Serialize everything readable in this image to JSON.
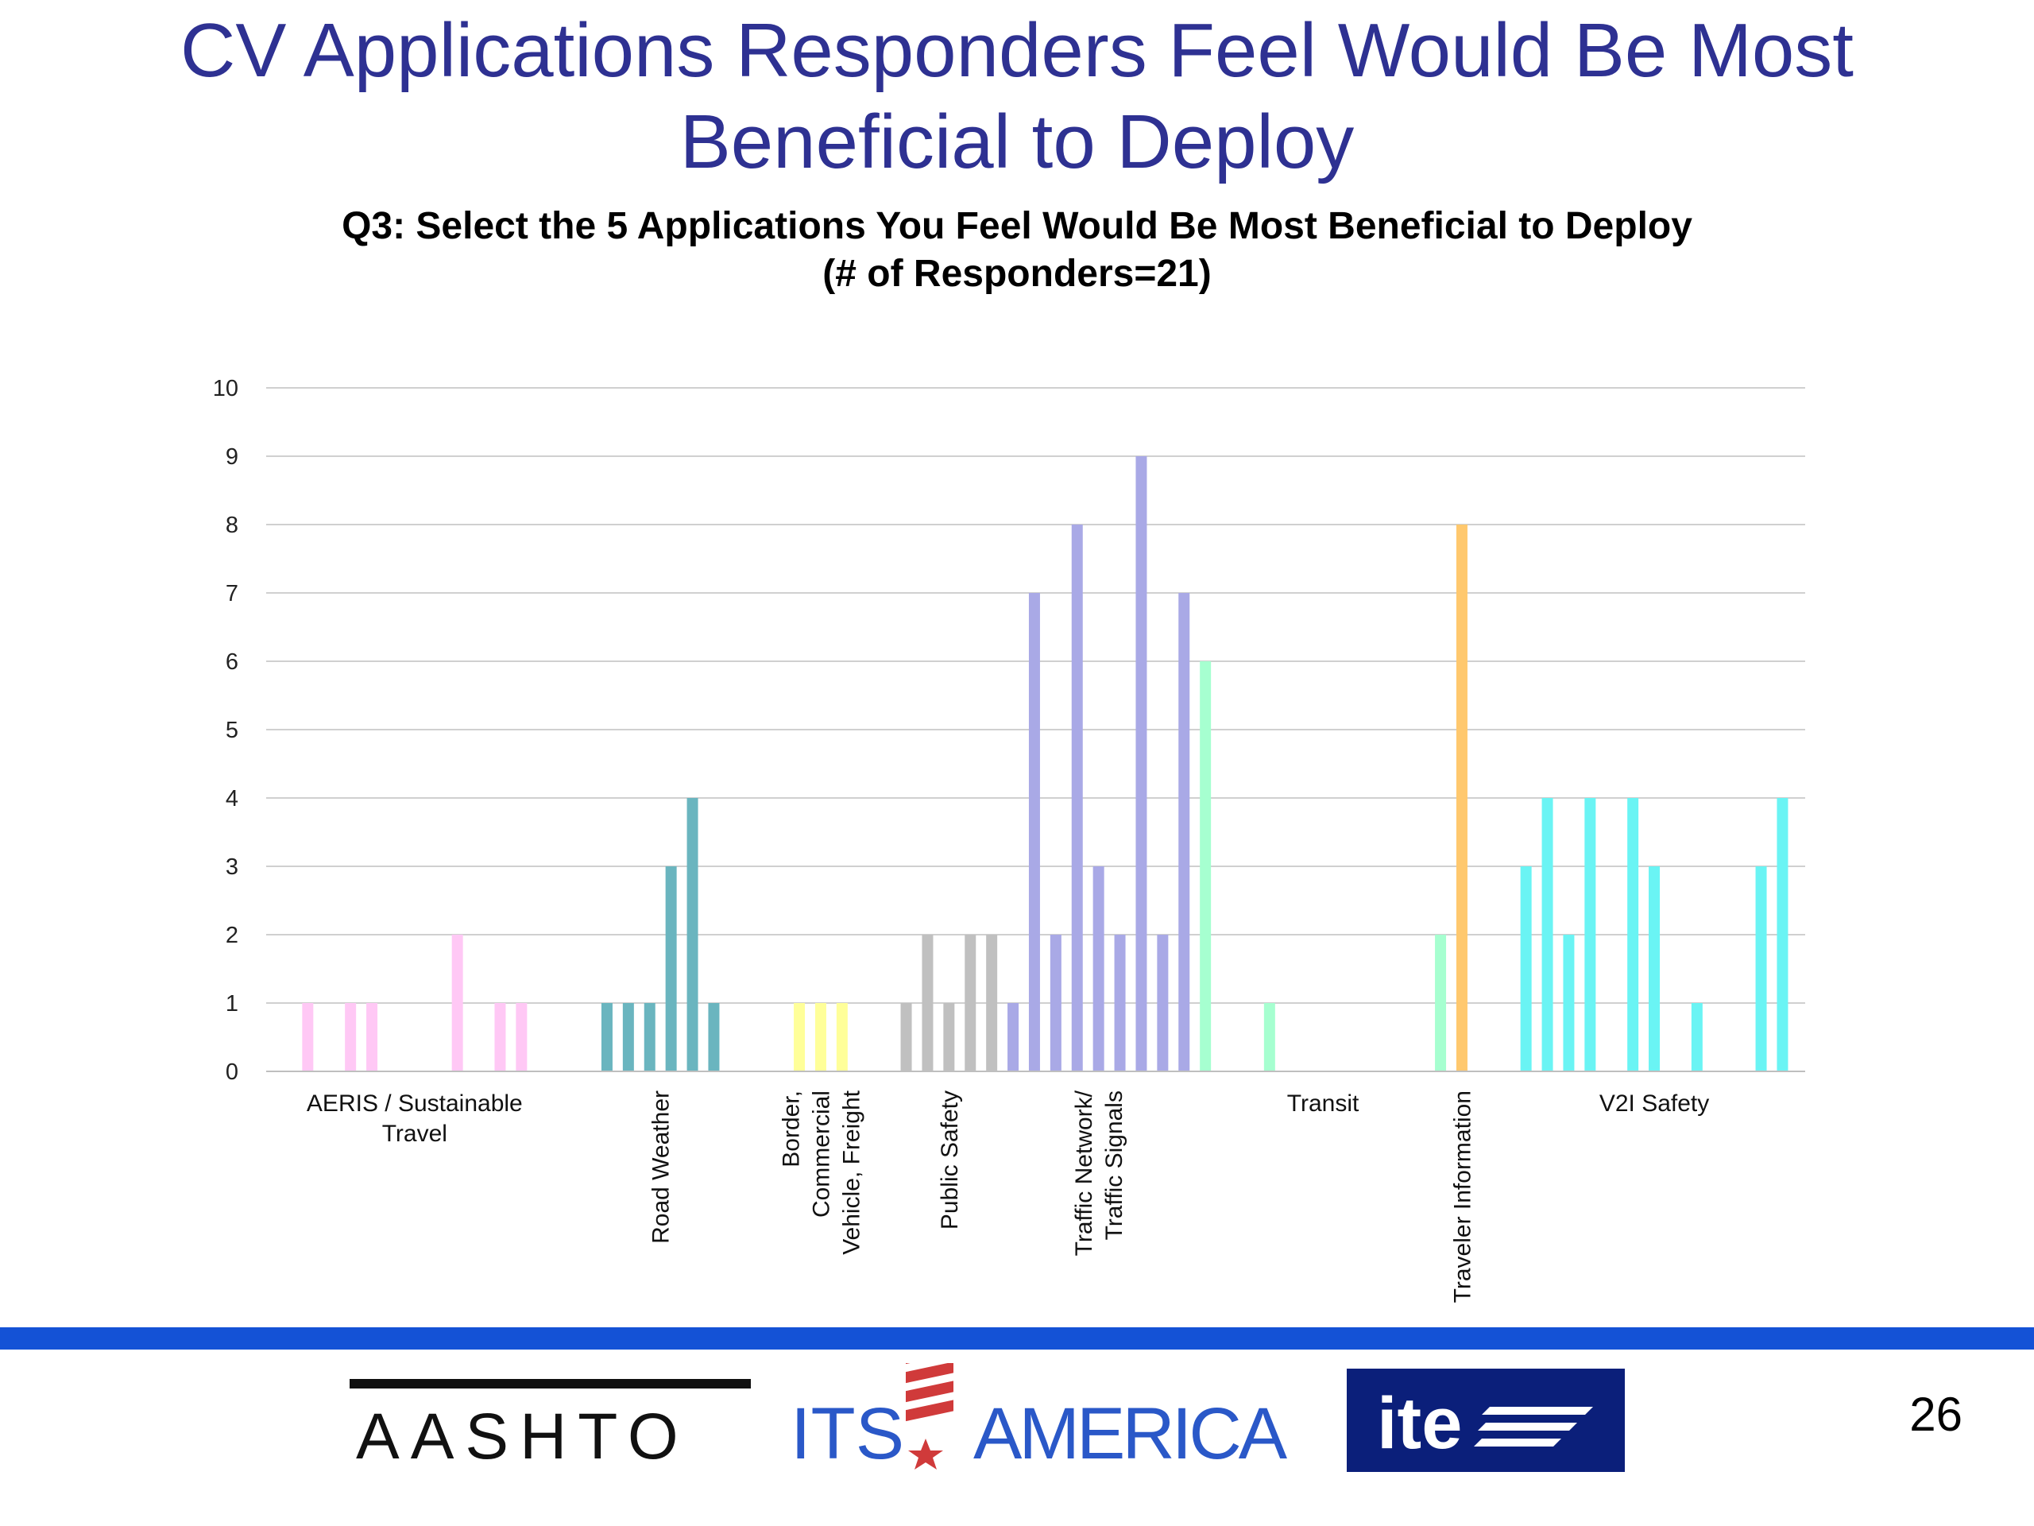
{
  "slide": {
    "title_line1": "CV Applications Responders Feel Would Be Most",
    "title_line2": "Beneficial to Deploy",
    "page_number": "26"
  },
  "logos": {
    "aashto": "AASHTO",
    "its_left": "ITS",
    "its_right": "AMERICA",
    "ite": "ite"
  },
  "colors": {
    "title": "#2e3192",
    "footer_band": "#1452d6",
    "gridline": "#d0d0d0"
  },
  "chart_data": {
    "type": "bar",
    "title": "Q3: Select the 5 Applications You Feel Would Be Most Beneficial to Deploy",
    "subtitle": "(# of Responders=21)",
    "xlabel": "",
    "ylabel": "",
    "ylim": [
      0,
      10
    ],
    "yticks": [
      0,
      1,
      2,
      3,
      4,
      5,
      6,
      7,
      8,
      9,
      10
    ],
    "grid": true,
    "slot_count": 70,
    "groups": [
      {
        "label": "AERIS / Sustainable Travel",
        "label_lines": [
          "AERIS / Sustainable",
          "Travel"
        ],
        "label_orientation": "horizontal",
        "color": "#ffc8f5",
        "bars": [
          {
            "slot": 2,
            "value": 1
          },
          {
            "slot": 4,
            "value": 1
          },
          {
            "slot": 5,
            "value": 1
          },
          {
            "slot": 9,
            "value": 2
          },
          {
            "slot": 11,
            "value": 1
          },
          {
            "slot": 12,
            "value": 1
          }
        ]
      },
      {
        "label": "Road Weather",
        "label_lines": [
          "Road Weather"
        ],
        "label_orientation": "vertical",
        "color": "#6ab5bf",
        "bars": [
          {
            "slot": 16,
            "value": 1
          },
          {
            "slot": 17,
            "value": 1
          },
          {
            "slot": 18,
            "value": 1
          },
          {
            "slot": 19,
            "value": 3
          },
          {
            "slot": 20,
            "value": 4
          },
          {
            "slot": 21,
            "value": 1
          }
        ]
      },
      {
        "label": "Border, Commercial Vehicle, Freight",
        "label_lines": [
          "Border,",
          "Commercial",
          "Vehicle, Freight"
        ],
        "label_orientation": "vertical",
        "color": "#ffff99",
        "bars": [
          {
            "slot": 25,
            "value": 1
          },
          {
            "slot": 26,
            "value": 1
          },
          {
            "slot": 27,
            "value": 1
          }
        ]
      },
      {
        "label": "Public Safety",
        "label_lines": [
          "Public Safety"
        ],
        "label_orientation": "vertical",
        "color": "#c0c0c0",
        "bars": [
          {
            "slot": 30,
            "value": 1
          },
          {
            "slot": 31,
            "value": 2
          },
          {
            "slot": 32,
            "value": 1
          },
          {
            "slot": 33,
            "value": 2
          },
          {
            "slot": 34,
            "value": 2
          }
        ]
      },
      {
        "label": "Traffic Network/ Traffic Signals",
        "label_lines": [
          "Traffic Network/",
          "Traffic Signals"
        ],
        "label_orientation": "vertical",
        "color": "#a9a9e6",
        "bars": [
          {
            "slot": 35,
            "value": 1
          },
          {
            "slot": 36,
            "value": 7
          },
          {
            "slot": 37,
            "value": 2
          },
          {
            "slot": 38,
            "value": 8
          },
          {
            "slot": 39,
            "value": 3
          },
          {
            "slot": 40,
            "value": 2
          },
          {
            "slot": 41,
            "value": 9
          },
          {
            "slot": 42,
            "value": 2
          },
          {
            "slot": 43,
            "value": 7
          }
        ]
      },
      {
        "label": "Transit",
        "label_lines": [
          "Transit"
        ],
        "label_orientation": "horizontal",
        "color": "#a6ffd0",
        "bars": [
          {
            "slot": 44,
            "value": 6
          },
          {
            "slot": 47,
            "value": 1
          },
          {
            "slot": 55,
            "value": 2
          }
        ]
      },
      {
        "label": "Traveler Information",
        "label_lines": [
          "Traveler Information"
        ],
        "label_orientation": "vertical",
        "color": "#ffc86e",
        "bars": [
          {
            "slot": 56,
            "value": 8
          }
        ]
      },
      {
        "label": "V2I Safety",
        "label_lines": [
          "V2I Safety"
        ],
        "label_orientation": "horizontal",
        "color": "#6af4f4",
        "bars": [
          {
            "slot": 59,
            "value": 3
          },
          {
            "slot": 60,
            "value": 4
          },
          {
            "slot": 61,
            "value": 2
          },
          {
            "slot": 62,
            "value": 4
          },
          {
            "slot": 64,
            "value": 4
          },
          {
            "slot": 65,
            "value": 3
          },
          {
            "slot": 67,
            "value": 1
          },
          {
            "slot": 70,
            "value": 3
          },
          {
            "slot": 71,
            "value": 4
          }
        ]
      }
    ]
  }
}
